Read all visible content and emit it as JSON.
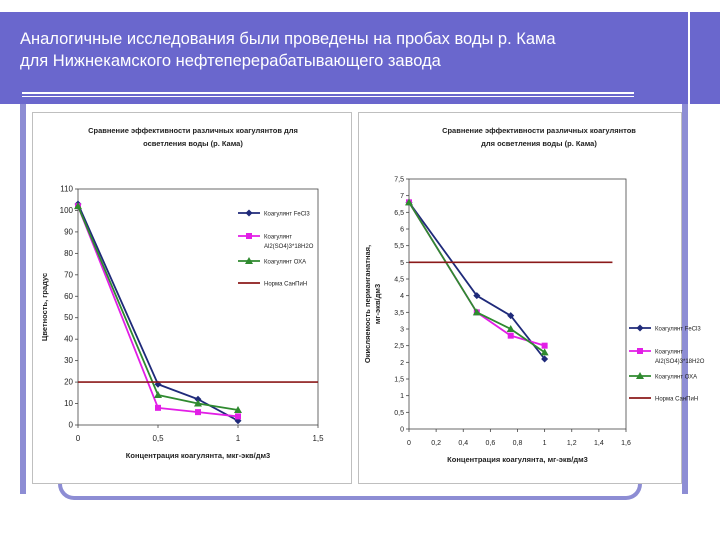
{
  "header": {
    "title_line1": "Аналогичные исследования были проведены на пробах воды р. Кама",
    "title_line2": "для Нижнекамского нефтеперерабатывающего завода"
  },
  "colors": {
    "header_bg": "#6a67cd",
    "fecl3": "#1f2a7a",
    "al2so4": "#e21ee6",
    "oxa": "#2f8a2f",
    "norm": "#8b1a1a"
  },
  "chart_data": [
    {
      "type": "line",
      "title_line1": "Сравнение эффективности различных коагулянтов для",
      "title_line2": "осветления воды (р. Кама)",
      "xlabel": "Концентрация коагулянта, мкг-экв/дм3",
      "ylabel": "Цветность, градус",
      "xlim": [
        0,
        1.5
      ],
      "ylim": [
        0,
        110
      ],
      "x_ticks": [
        "0",
        "0,5",
        "1",
        "1,5"
      ],
      "y_ticks": [
        "0",
        "10",
        "20",
        "30",
        "40",
        "50",
        "60",
        "70",
        "80",
        "90",
        "100",
        "110"
      ],
      "series": [
        {
          "name": "Коагулянт FeCl3",
          "x": [
            0,
            0.5,
            0.75,
            1
          ],
          "y": [
            103,
            19,
            12,
            2
          ]
        },
        {
          "name": "Коагулянт Al2(SO4)3·18H2O",
          "x": [
            0,
            0.5,
            0.75,
            1
          ],
          "y": [
            102,
            8,
            6,
            4
          ]
        },
        {
          "name": "Коагулянт ОХА",
          "x": [
            0,
            0.5,
            0.75,
            1
          ],
          "y": [
            102,
            14,
            10,
            7
          ]
        },
        {
          "name": "Норма СанПиН",
          "x": [
            0,
            0.5,
            1,
            1.5
          ],
          "y": [
            20,
            20,
            20,
            20
          ]
        }
      ],
      "legend": [
        {
          "label": "Коагулянт FeCl3",
          "key": "fecl3"
        },
        {
          "label": "Коагулянт",
          "label2": "Al2(SO4)3*18H2O",
          "key": "al2so4"
        },
        {
          "label": "Коагулянт ОХА",
          "key": "oxa"
        },
        {
          "label": "Норма СанПиН",
          "key": "norm"
        }
      ]
    },
    {
      "type": "line",
      "title_line1": "Сравнение эффективности различных коагулянтов",
      "title_line2": "для осветления воды (р. Кама)",
      "xlabel": "Концентрация коагулянта, мг-экв/дм3",
      "ylabel_line1": "Окисляемость перманганатная,",
      "ylabel_line2": "мг-экв/дм3",
      "xlim": [
        0,
        1.6
      ],
      "ylim": [
        0,
        7.5
      ],
      "x_ticks": [
        "0",
        "0,2",
        "0,4",
        "0,6",
        "0,8",
        "1",
        "1,2",
        "1,4",
        "1,6"
      ],
      "y_ticks": [
        "0",
        "0,5",
        "1",
        "1,5",
        "2",
        "2,5",
        "3",
        "3,5",
        "4",
        "4,5",
        "5",
        "5,5",
        "6",
        "6,5",
        "7",
        "7,5"
      ],
      "series": [
        {
          "name": "Коагулянт FeCl3",
          "x": [
            0,
            0.5,
            0.75,
            1
          ],
          "y": [
            6.8,
            4.0,
            3.4,
            2.1
          ]
        },
        {
          "name": "Коагулянт Al2(SO4)3·18H2O",
          "x": [
            0,
            0.5,
            0.75,
            1
          ],
          "y": [
            6.8,
            3.5,
            2.8,
            2.5
          ]
        },
        {
          "name": "Коагулянт ОХА",
          "x": [
            0,
            0.5,
            0.75,
            1
          ],
          "y": [
            6.8,
            3.5,
            3.0,
            2.3
          ]
        },
        {
          "name": "Норма СанПиН",
          "x": [
            0,
            0.5,
            1,
            1.5
          ],
          "y": [
            5.0,
            5.0,
            5.0,
            5.0
          ]
        }
      ],
      "legend": [
        {
          "label": "Коагулянт FeCl3",
          "key": "fecl3"
        },
        {
          "label": "Коагулянт",
          "label2": "Al2(SO4)3*18H2O",
          "key": "al2so4"
        },
        {
          "label": "Коагулянт ОХА",
          "key": "oxa"
        },
        {
          "label": "Норма СанПиН",
          "key": "norm"
        }
      ]
    }
  ]
}
